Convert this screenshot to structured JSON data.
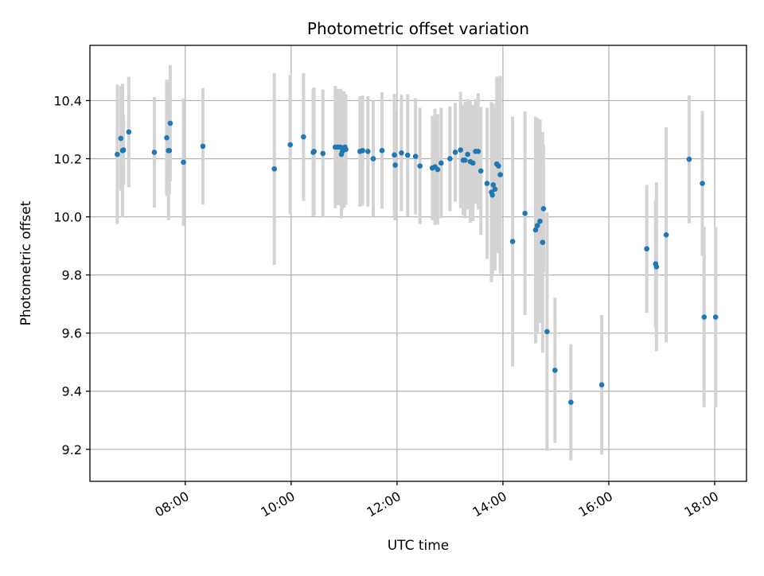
{
  "chart_data": {
    "type": "scatter",
    "title": "Photometric offset variation",
    "xlabel": "UTC time",
    "ylabel": "Photometric offset",
    "x_unit": "UTC time of day (HH:MM)",
    "xlim": [
      "06:12",
      "18:36"
    ],
    "ylim": [
      9.09,
      10.59
    ],
    "x_ticks": [
      "08:00",
      "10:00",
      "12:00",
      "14:00",
      "16:00",
      "18:00"
    ],
    "y_ticks": [
      9.2,
      9.4,
      9.6,
      9.8,
      10.0,
      10.2,
      10.4
    ],
    "y_tick_labels": [
      "9.2",
      "9.4",
      "9.6",
      "9.8",
      "10.0",
      "10.2",
      "10.4"
    ],
    "grid": true,
    "x_tick_label_rotation_deg": 30,
    "marker_color": "#1f77b4",
    "errorbar_color": "#d3d3d3",
    "series": [
      {
        "x": [
          "06:43",
          "06:47",
          "06:49",
          "06:50",
          "06:56",
          "07:25",
          "07:39",
          "07:41",
          "07:42",
          "07:43",
          "07:58",
          "08:20",
          "09:41",
          "09:59",
          "10:14",
          "10:25",
          "10:26",
          "10:36",
          "10:50",
          "10:53",
          "10:56",
          "10:57",
          "10:58",
          "11:00",
          "11:01",
          "11:02",
          "11:18",
          "11:21",
          "11:27",
          "11:33",
          "11:43",
          "11:57",
          "11:58",
          "12:05",
          "12:12",
          "12:21",
          "12:26",
          "12:40",
          "12:43",
          "12:46",
          "12:50",
          "13:00",
          "13:06",
          "13:12",
          "13:15",
          "13:17",
          "13:20",
          "13:23",
          "13:26",
          "13:29",
          "13:32",
          "13:35",
          "13:42",
          "13:47",
          "13:48",
          "13:49",
          "13:51",
          "13:53",
          "13:55",
          "13:57",
          "14:11",
          "14:25",
          "14:37",
          "14:39",
          "14:42",
          "14:45",
          "14:46",
          "14:50",
          "14:59",
          "15:17",
          "15:52",
          "16:43",
          "16:53",
          "16:54",
          "17:05",
          "17:31",
          "17:46",
          "17:48",
          "18:01"
        ],
        "y": [
          10.215,
          10.27,
          10.228,
          10.23,
          10.292,
          10.222,
          10.272,
          10.228,
          10.228,
          10.322,
          10.188,
          10.243,
          10.165,
          10.248,
          10.275,
          10.222,
          10.225,
          10.218,
          10.24,
          10.24,
          10.24,
          10.215,
          10.225,
          10.232,
          10.24,
          10.232,
          10.225,
          10.228,
          10.225,
          10.2,
          10.228,
          10.213,
          10.178,
          10.22,
          10.212,
          10.208,
          10.175,
          10.168,
          10.172,
          10.163,
          10.185,
          10.2,
          10.222,
          10.23,
          10.195,
          10.195,
          10.215,
          10.19,
          10.185,
          10.225,
          10.225,
          10.158,
          10.115,
          10.085,
          10.075,
          10.11,
          10.095,
          10.182,
          10.175,
          10.145,
          9.915,
          10.012,
          9.955,
          9.97,
          9.985,
          9.912,
          10.028,
          9.605,
          9.472,
          9.362,
          9.422,
          9.89,
          9.838,
          9.828,
          9.938,
          10.198,
          10.115,
          9.655,
          9.655
        ],
        "err": [
          0.24,
          0.18,
          0.23,
          0.12,
          0.19,
          0.19,
          0.2,
          0.24,
          0.15,
          0.2,
          0.22,
          0.2,
          0.33,
          0.24,
          0.22,
          0.22,
          0.22,
          0.22,
          0.21,
          0.2,
          0.2,
          0.22,
          0.2,
          0.2,
          0.18,
          0.19,
          0.19,
          0.19,
          0.19,
          0.2,
          0.2,
          0.21,
          0.19,
          0.2,
          0.21,
          0.2,
          0.2,
          0.18,
          0.2,
          0.19,
          0.19,
          0.18,
          0.17,
          0.2,
          0.19,
          0.2,
          0.19,
          0.21,
          0.2,
          0.18,
          0.2,
          0.22,
          0.26,
          0.31,
          0.28,
          0.28,
          0.28,
          0.3,
          0.3,
          0.34,
          0.43,
          0.35,
          0.39,
          0.37,
          0.35,
          0.38,
          0.22,
          0.41,
          0.25,
          0.2,
          0.24,
          0.22,
          0.22,
          0.29,
          0.37,
          0.22,
          0.25,
          0.31,
          0.31
        ]
      }
    ]
  }
}
